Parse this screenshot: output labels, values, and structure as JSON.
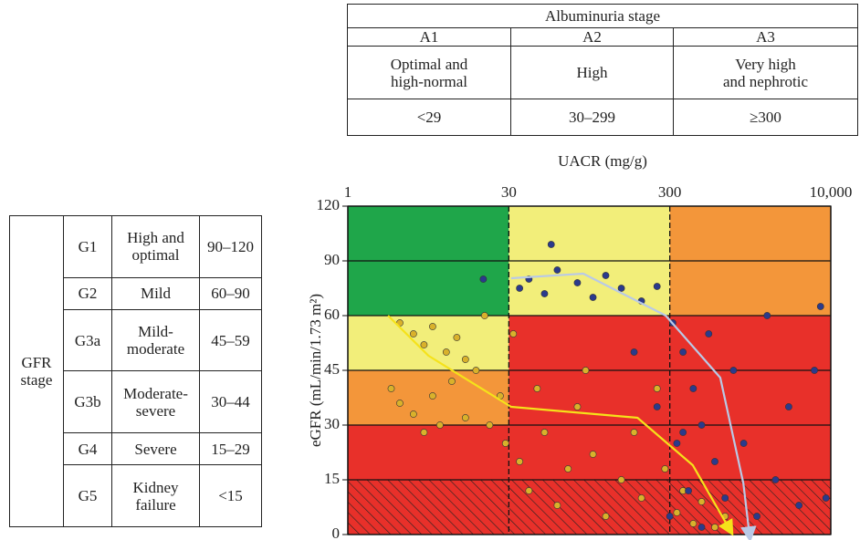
{
  "albuminuria_table": {
    "title": "Albuminuria stage",
    "stages": [
      "A1",
      "A2",
      "A3"
    ],
    "descriptions": [
      "Optimal and\nhigh-normal",
      "High",
      "Very high\nand nephrotic"
    ],
    "ranges": [
      "<29",
      "30–299",
      "≥300"
    ]
  },
  "gfr_table": {
    "title": "GFR\nstage",
    "rows": [
      [
        "G1",
        "High and\noptimal",
        "90–120"
      ],
      [
        "G2",
        "Mild",
        "60–90"
      ],
      [
        "G3a",
        "Mild-\nmoderate",
        "45–59"
      ],
      [
        "G3b",
        "Moderate-\nsevere",
        "30–44"
      ],
      [
        "G4",
        "Severe",
        "15–29"
      ],
      [
        "G5",
        "Kidney\nfailure",
        "<15"
      ]
    ]
  },
  "chart_data": {
    "type": "scatter",
    "x_label": "UACR (mg/g)",
    "y_label": "eGFR (mL/min/1.73 m²)",
    "xlim": [
      1,
      10000
    ],
    "xticks": [
      1,
      30,
      300,
      {
        "value": 10000,
        "label": "10,000"
      }
    ],
    "x_log": true,
    "ylim": [
      0,
      120
    ],
    "yticks": [
      0,
      15,
      30,
      45,
      60,
      90,
      120
    ],
    "zone_colors": [
      [
        "#e8302a",
        "#e8302a",
        "#e8302a"
      ],
      [
        "#e8302a",
        "#e8302a",
        "#e8302a"
      ],
      [
        "#f3963a",
        "#e8302a",
        "#e8302a"
      ],
      [
        "#f2ee7a",
        "#e8302a",
        "#e8302a"
      ],
      [
        "#1fa64a",
        "#f2ee7a",
        "#f3963a"
      ],
      [
        "#1fa64a",
        "#f2ee7a",
        "#f3963a"
      ]
    ],
    "hatch_bottom_row": true,
    "series": [
      {
        "color": "#d9b12b",
        "x": [
          3,
          4,
          5,
          6,
          8,
          10,
          12,
          2.5,
          3,
          4,
          6,
          9,
          15,
          20,
          25,
          28,
          35,
          40,
          50,
          60,
          70,
          80,
          100,
          120,
          150,
          180,
          200,
          250,
          280,
          350,
          400,
          500,
          600,
          800,
          1000,
          5,
          7,
          12,
          18,
          32,
          45,
          90
        ],
        "values": [
          58,
          55,
          52,
          57,
          50,
          54,
          48,
          40,
          36,
          33,
          38,
          42,
          45,
          30,
          38,
          25,
          20,
          12,
          28,
          8,
          18,
          35,
          22,
          5,
          15,
          28,
          10,
          40,
          18,
          6,
          12,
          3,
          9,
          2,
          5,
          28,
          30,
          32,
          60,
          55,
          40,
          45
        ]
      },
      {
        "color": "#2b3a8c",
        "x": [
          35,
          40,
          50,
          60,
          80,
          100,
          120,
          150,
          200,
          250,
          55,
          17.5,
          320,
          400,
          500,
          600,
          800,
          1000,
          1500,
          2000,
          3000,
          4000,
          5000,
          7000,
          8000,
          9000,
          350,
          450,
          700,
          1200,
          2500,
          300,
          600,
          180,
          250,
          400
        ],
        "values": [
          75,
          80,
          72,
          85,
          78,
          70,
          82,
          75,
          68,
          76,
          99,
          80,
          58,
          50,
          40,
          30,
          20,
          10,
          25,
          5,
          15,
          35,
          8,
          45,
          65,
          10,
          25,
          12,
          55,
          45,
          60,
          5,
          2,
          50,
          35,
          28
        ]
      }
    ],
    "trend_lines": [
      {
        "color": "#f5e21a",
        "x": [
          2.34,
          5.5,
          31,
          189,
          495,
          1100
        ],
        "values": [
          60,
          49,
          35,
          32,
          19,
          1.5
        ]
      },
      {
        "color": "#b9c9e6",
        "x": [
          31,
          87,
          283,
          900,
          1490,
          1700
        ],
        "values": [
          80.5,
          83,
          60,
          43,
          14,
          0
        ]
      }
    ]
  }
}
